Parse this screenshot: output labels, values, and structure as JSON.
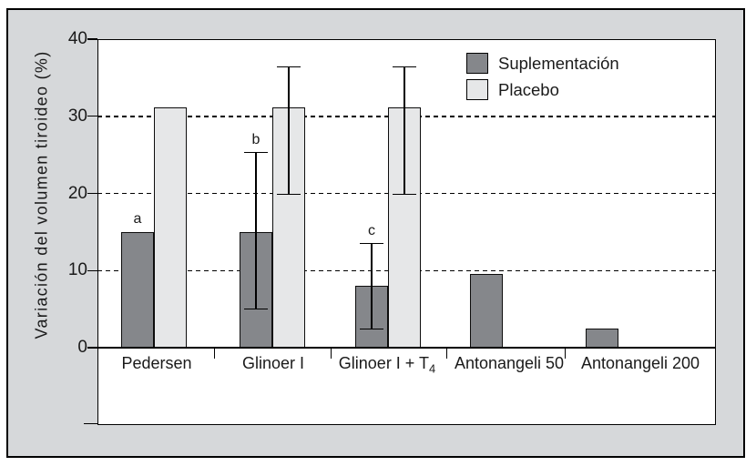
{
  "chart_data": {
    "type": "bar",
    "title": "",
    "xlabel": "",
    "ylabel": "Variación del volumen tiroideo (%)",
    "ylim": [
      0,
      40
    ],
    "yticks": [
      0,
      10,
      20,
      30,
      40
    ],
    "grid_dashed_at": [
      10,
      20,
      30
    ],
    "grid": "dashed-horizontal",
    "legend_position": "top-right-inside",
    "categories": [
      {
        "text": "Pedersen",
        "sub": ""
      },
      {
        "text": "Glinoer I",
        "sub": ""
      },
      {
        "text": "Glinoer I + T",
        "sub": "4"
      },
      {
        "text": "Antonangeli 50",
        "sub": ""
      },
      {
        "text": "Antonangeli 200",
        "sub": ""
      }
    ],
    "series": [
      {
        "name": "Suplementación",
        "color": "#85878b",
        "values": [
          15,
          15,
          8,
          9.6,
          2.5
        ],
        "error_bars": [
          null,
          {
            "low": 5,
            "high": 25.3
          },
          {
            "low": 2.4,
            "high": 13.5
          },
          null,
          null
        ],
        "annotations": [
          "a",
          "b",
          "c",
          null,
          null
        ]
      },
      {
        "name": "Placebo",
        "color": "#e6e7e8",
        "values": [
          31.2,
          31.2,
          31.2,
          null,
          null
        ],
        "error_bars": [
          null,
          {
            "low": 19.9,
            "high": 36.4
          },
          {
            "low": 19.9,
            "high": 36.4
          },
          null,
          null
        ],
        "annotations": [
          null,
          null,
          null,
          null,
          null
        ]
      }
    ],
    "colors": {
      "background": "#d6d8da",
      "plot_background": "#ffffff",
      "line": "#000000",
      "text": "#1a1a1a"
    }
  }
}
